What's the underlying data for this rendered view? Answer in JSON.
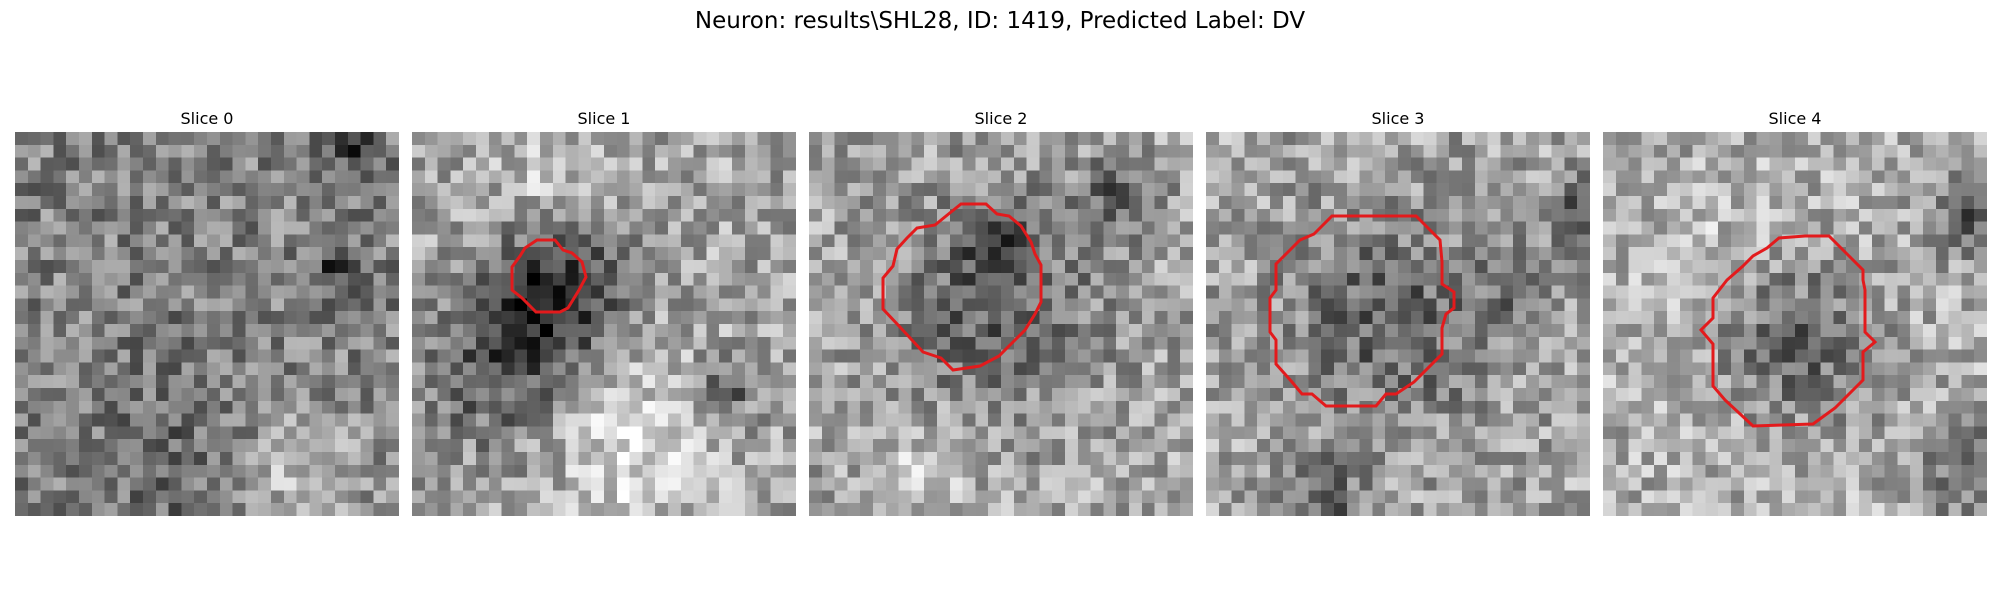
{
  "figure": {
    "title": "Neuron: results\\SHL28, ID: 1419, Predicted Label: DV"
  },
  "panels": [
    {
      "title": "Slice 0",
      "contour": false
    },
    {
      "title": "Slice 1",
      "contour": true
    },
    {
      "title": "Slice 2",
      "contour": true
    },
    {
      "title": "Slice 3",
      "contour": true
    },
    {
      "title": "Slice 4",
      "contour": true
    }
  ],
  "colors": {
    "contour": "#e31a1c",
    "colormap": "grayscale"
  }
}
